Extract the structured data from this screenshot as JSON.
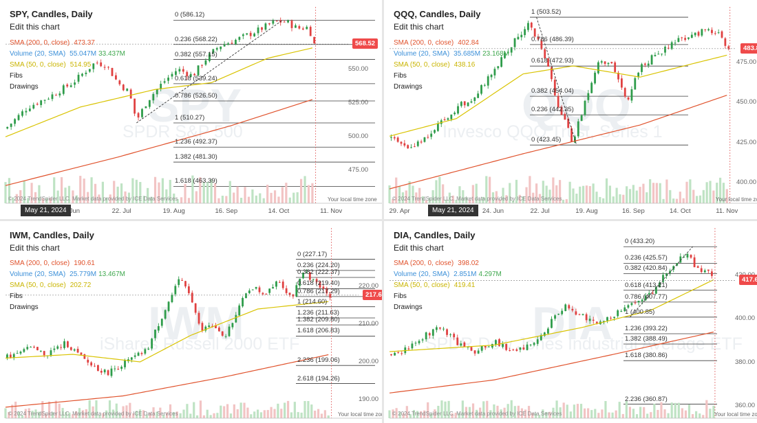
{
  "chart_data": [
    {
      "type": "candlestick",
      "title": "SPY, Candles, Daily",
      "edit_label": "Edit this chart",
      "watermark_symbol": "SPY",
      "watermark_name": "SPDR S&P 500",
      "indicators": [
        {
          "label": "SMA (200, 0, close)",
          "value": "473.37",
          "color": "#e0522c"
        },
        {
          "label": "Volume (20, SMA)",
          "value": "55.047M",
          "value2": "33.437M",
          "color": "#3b8fd8"
        },
        {
          "label": "SMA (50, 0, close)",
          "value": "514.95",
          "color": "#c9b400"
        },
        {
          "label": "Fibs",
          "value": "",
          "color": "#222"
        },
        {
          "label": "Drawings",
          "value": "",
          "color": "#222"
        }
      ],
      "y_ticks": [
        "550.00",
        "525.00",
        "500.00",
        "475.00"
      ],
      "y_values": [
        550,
        525,
        500,
        475
      ],
      "ylim": [
        458,
        596
      ],
      "x_ticks": [
        "24. Jun",
        "22. Jul",
        "19. Aug",
        "16. Sep",
        "14. Oct",
        "11. Nov"
      ],
      "x_tick_days": [
        34,
        62,
        90,
        118,
        146,
        174
      ],
      "x_start": "May 21, 2024",
      "last_price": "568.52",
      "last_value": 568.52,
      "fib_levels": [
        {
          "label": "0 (586.12)",
          "value": 586.12
        },
        {
          "label": "0.236 (568.22)",
          "value": 568.22
        },
        {
          "label": "0.382 (557.15)",
          "value": 557.15
        },
        {
          "label": "0.618 (539.24)",
          "value": 539.24
        },
        {
          "label": "0.786 (526.50)",
          "value": 526.5
        },
        {
          "label": "1 (510.27)",
          "value": 510.27
        },
        {
          "label": "1.236 (492.37)",
          "value": 492.37
        },
        {
          "label": "1.382 (481.30)",
          "value": 481.3
        },
        {
          "label": "1.618 (463.39)",
          "value": 463.39
        }
      ],
      "close_series": [
        {
          "day": 0,
          "value": 506
        },
        {
          "day": 12,
          "value": 522
        },
        {
          "day": 24,
          "value": 530
        },
        {
          "day": 36,
          "value": 540
        },
        {
          "day": 48,
          "value": 555
        },
        {
          "day": 54,
          "value": 553
        },
        {
          "day": 60,
          "value": 540
        },
        {
          "day": 66,
          "value": 533
        },
        {
          "day": 70,
          "value": 512
        },
        {
          "day": 76,
          "value": 527
        },
        {
          "day": 84,
          "value": 540
        },
        {
          "day": 92,
          "value": 550
        },
        {
          "day": 100,
          "value": 545
        },
        {
          "day": 106,
          "value": 556
        },
        {
          "day": 114,
          "value": 567
        },
        {
          "day": 124,
          "value": 572
        },
        {
          "day": 134,
          "value": 578
        },
        {
          "day": 144,
          "value": 585
        },
        {
          "day": 150,
          "value": 585
        },
        {
          "day": 156,
          "value": 580
        },
        {
          "day": 162,
          "value": 581
        },
        {
          "day": 165,
          "value": 568.5
        }
      ],
      "sma50_series": [
        {
          "day": 0,
          "value": 500
        },
        {
          "day": 40,
          "value": 522
        },
        {
          "day": 80,
          "value": 535
        },
        {
          "day": 110,
          "value": 540
        },
        {
          "day": 140,
          "value": 558
        },
        {
          "day": 165,
          "value": 566
        }
      ],
      "sma200_series": [
        {
          "day": 0,
          "value": 464
        },
        {
          "day": 60,
          "value": 485
        },
        {
          "day": 120,
          "value": 508
        },
        {
          "day": 165,
          "value": 528
        }
      ],
      "fib_drawing": [
        {
          "day": 70,
          "value": 510.27
        },
        {
          "day": 148,
          "value": 586.12
        }
      ],
      "credit": "© 2024 TrendSpider LLC. Market data provided by ICE Data Services",
      "timezone": "Your local time zone"
    },
    {
      "type": "candlestick",
      "title": "QQQ, Candles, Daily",
      "edit_label": "Edit this chart",
      "watermark_symbol": "QQQ",
      "watermark_name": "Invesco QQQ Trust, Series 1",
      "indicators": [
        {
          "label": "SMA (200, 0, close)",
          "value": "402.84",
          "color": "#e0522c"
        },
        {
          "label": "Volume (20, SMA)",
          "value": "35.685M",
          "value2": "23.168M",
          "color": "#3b8fd8"
        },
        {
          "label": "SMA (50, 0, close)",
          "value": "438.16",
          "color": "#c9b400"
        },
        {
          "label": "Fibs",
          "value": "",
          "color": "#222"
        },
        {
          "label": "Drawings",
          "value": "",
          "color": "#222"
        }
      ],
      "y_ticks": [
        "475.00",
        "450.00",
        "425.00",
        "400.00"
      ],
      "y_values": [
        475,
        450,
        425,
        400
      ],
      "ylim": [
        393,
        510
      ],
      "x_ticks": [
        "29. Apr",
        "24. Jun",
        "22. Jul",
        "19. Aug",
        "16. Sep",
        "14. Oct",
        "11. Nov"
      ],
      "x_tick_days": [
        6,
        62,
        90,
        118,
        146,
        174,
        202
      ],
      "x_start": "May 21, 2024",
      "last_price": "483.85",
      "last_value": 483.85,
      "fib_levels": [
        {
          "label": "1 (503.52)",
          "value": 503.52
        },
        {
          "label": "0.786 (486.39)",
          "value": 486.39
        },
        {
          "label": "0.618 (472.93)",
          "value": 472.93
        },
        {
          "label": "0.382 (454.04)",
          "value": 454.04
        },
        {
          "label": "0.236 (442.35)",
          "value": 442.35
        },
        {
          "label": "0 (423.45)",
          "value": 423.45
        }
      ],
      "close_series": [
        {
          "day": 0,
          "value": 428
        },
        {
          "day": 12,
          "value": 422
        },
        {
          "day": 24,
          "value": 430
        },
        {
          "day": 38,
          "value": 445
        },
        {
          "day": 52,
          "value": 455
        },
        {
          "day": 62,
          "value": 470
        },
        {
          "day": 76,
          "value": 490
        },
        {
          "day": 84,
          "value": 500
        },
        {
          "day": 92,
          "value": 482
        },
        {
          "day": 102,
          "value": 445
        },
        {
          "day": 110,
          "value": 425
        },
        {
          "day": 118,
          "value": 455
        },
        {
          "day": 126,
          "value": 477
        },
        {
          "day": 134,
          "value": 472
        },
        {
          "day": 142,
          "value": 450
        },
        {
          "day": 150,
          "value": 473
        },
        {
          "day": 160,
          "value": 480
        },
        {
          "day": 170,
          "value": 487
        },
        {
          "day": 180,
          "value": 492
        },
        {
          "day": 190,
          "value": 496
        },
        {
          "day": 198,
          "value": 492
        },
        {
          "day": 203,
          "value": 483.9
        }
      ],
      "sma50_series": [
        {
          "day": 0,
          "value": 429
        },
        {
          "day": 40,
          "value": 440
        },
        {
          "day": 80,
          "value": 468
        },
        {
          "day": 110,
          "value": 473
        },
        {
          "day": 150,
          "value": 466
        },
        {
          "day": 180,
          "value": 474
        },
        {
          "day": 203,
          "value": 480
        }
      ],
      "sma200_series": [
        {
          "day": 0,
          "value": 396
        },
        {
          "day": 80,
          "value": 418
        },
        {
          "day": 150,
          "value": 436
        },
        {
          "day": 203,
          "value": 455
        }
      ],
      "fib_drawing": [
        {
          "day": 88,
          "value": 503.52
        },
        {
          "day": 112,
          "value": 423.45
        }
      ],
      "credit": "© 2024 TrendSpider LLC. Market data provided by ICE Data Services",
      "timezone": "Your local time zone"
    },
    {
      "type": "candlestick",
      "title": "IWM, Candles, Daily",
      "edit_label": "Edit this chart",
      "watermark_symbol": "IWM",
      "watermark_name": "iShares Russell 2000 ETF",
      "indicators": [
        {
          "label": "SMA (200, 0, close)",
          "value": "190.61",
          "color": "#e0522c"
        },
        {
          "label": "Volume (20, SMA)",
          "value": "25.779M",
          "value2": "13.467M",
          "color": "#3b8fd8"
        },
        {
          "label": "SMA (50, 0, close)",
          "value": "202.72",
          "color": "#c9b400"
        },
        {
          "label": "Fibs",
          "value": "",
          "color": "#222"
        },
        {
          "label": "Drawings",
          "value": "",
          "color": "#222"
        }
      ],
      "y_ticks": [
        "220.00",
        "210.00",
        "200.00",
        "190.00"
      ],
      "y_values": [
        220,
        210,
        200,
        190
      ],
      "ylim": [
        186,
        230
      ],
      "x_ticks": [],
      "x_tick_days": [],
      "x_start": "",
      "last_price": "217.67",
      "last_value": 217.67,
      "fib_levels": [
        {
          "label": "0 (227.17)",
          "value": 227.17
        },
        {
          "label": "0.236 (224.20)",
          "value": 224.2
        },
        {
          "label": "0.382 (222.37)",
          "value": 222.37
        },
        {
          "label": "0.618 (219.40)",
          "value": 219.4
        },
        {
          "label": "0.786 (217.29)",
          "value": 217.29
        },
        {
          "label": "1 (214.60)",
          "value": 214.6
        },
        {
          "label": "1.236 (211.63)",
          "value": 211.63
        },
        {
          "label": "1.382 (209.80)",
          "value": 209.8
        },
        {
          "label": "1.618 (206.83)",
          "value": 206.83
        },
        {
          "label": "2.236 (199.06)",
          "value": 199.06
        },
        {
          "label": "2.618 (194.26)",
          "value": 194.26
        }
      ],
      "close_series": [
        {
          "day": 0,
          "value": 201
        },
        {
          "day": 12,
          "value": 204
        },
        {
          "day": 24,
          "value": 202
        },
        {
          "day": 36,
          "value": 205
        },
        {
          "day": 48,
          "value": 200
        },
        {
          "day": 60,
          "value": 197
        },
        {
          "day": 72,
          "value": 200
        },
        {
          "day": 84,
          "value": 203
        },
        {
          "day": 96,
          "value": 215
        },
        {
          "day": 104,
          "value": 222
        },
        {
          "day": 110,
          "value": 218
        },
        {
          "day": 116,
          "value": 208
        },
        {
          "day": 122,
          "value": 210
        },
        {
          "day": 130,
          "value": 206
        },
        {
          "day": 138,
          "value": 214
        },
        {
          "day": 146,
          "value": 220
        },
        {
          "day": 154,
          "value": 218
        },
        {
          "day": 162,
          "value": 222
        },
        {
          "day": 170,
          "value": 217
        },
        {
          "day": 178,
          "value": 224
        },
        {
          "day": 186,
          "value": 220
        },
        {
          "day": 193,
          "value": 217.7
        }
      ],
      "sma50_series": [
        {
          "day": 0,
          "value": 201
        },
        {
          "day": 40,
          "value": 202
        },
        {
          "day": 80,
          "value": 200
        },
        {
          "day": 110,
          "value": 207
        },
        {
          "day": 150,
          "value": 214
        },
        {
          "day": 193,
          "value": 216
        }
      ],
      "sma200_series": [
        {
          "day": 0,
          "value": 188
        },
        {
          "day": 70,
          "value": 191
        },
        {
          "day": 130,
          "value": 196
        },
        {
          "day": 193,
          "value": 202
        }
      ],
      "fib_drawing": [],
      "credit": "© 2024 TrendSpider LLC. Market data provided by ICE Data Services",
      "timezone": "Your local time zone"
    },
    {
      "type": "candlestick",
      "title": "DIA, Candles, Daily",
      "edit_label": "Edit this chart",
      "watermark_symbol": "DIA",
      "watermark_name": "SPDR Dow Jones Industrial Average ETF",
      "indicators": [
        {
          "label": "SMA (200, 0, close)",
          "value": "398.02",
          "color": "#e0522c"
        },
        {
          "label": "Volume (20, SMA)",
          "value": "2.851M",
          "value2": "4.297M",
          "color": "#3b8fd8"
        },
        {
          "label": "SMA (50, 0, close)",
          "value": "419.41",
          "color": "#c9b400"
        },
        {
          "label": "Fibs",
          "value": "",
          "color": "#222"
        },
        {
          "label": "Drawings",
          "value": "",
          "color": "#222"
        }
      ],
      "y_ticks": [
        "420.00",
        "400.00",
        "380.00",
        "360.00"
      ],
      "y_values": [
        420,
        400,
        380,
        360
      ],
      "ylim": [
        356,
        438
      ],
      "x_ticks": [],
      "x_tick_days": [],
      "x_start": "",
      "last_price": "417.69",
      "last_value": 417.69,
      "fib_levels": [
        {
          "label": "0 (433.20)",
          "value": 433.2
        },
        {
          "label": "0.236 (425.57)",
          "value": 425.57
        },
        {
          "label": "0.382 (420.84)",
          "value": 420.84
        },
        {
          "label": "0.618 (413.21)",
          "value": 413.21
        },
        {
          "label": "0.786 (407.77)",
          "value": 407.77
        },
        {
          "label": "1 (400.85)",
          "value": 400.85
        },
        {
          "label": "1.236 (393.22)",
          "value": 393.22
        },
        {
          "label": "1.382 (388.49)",
          "value": 388.49
        },
        {
          "label": "1.618 (380.86)",
          "value": 380.86
        },
        {
          "label": "2.236 (360.87)",
          "value": 360.87
        }
      ],
      "close_series": [
        {
          "day": 0,
          "value": 384
        },
        {
          "day": 10,
          "value": 386
        },
        {
          "day": 20,
          "value": 392
        },
        {
          "day": 30,
          "value": 396
        },
        {
          "day": 40,
          "value": 388
        },
        {
          "day": 50,
          "value": 385
        },
        {
          "day": 60,
          "value": 390
        },
        {
          "day": 70,
          "value": 385
        },
        {
          "day": 80,
          "value": 388
        },
        {
          "day": 90,
          "value": 396
        },
        {
          "day": 100,
          "value": 406
        },
        {
          "day": 110,
          "value": 402
        },
        {
          "day": 120,
          "value": 398
        },
        {
          "day": 130,
          "value": 402
        },
        {
          "day": 140,
          "value": 408
        },
        {
          "day": 150,
          "value": 412
        },
        {
          "day": 160,
          "value": 422
        },
        {
          "day": 170,
          "value": 430
        },
        {
          "day": 176,
          "value": 424
        },
        {
          "day": 182,
          "value": 422
        },
        {
          "day": 186,
          "value": 417.7
        }
      ],
      "sma50_series": [
        {
          "day": 0,
          "value": 385
        },
        {
          "day": 60,
          "value": 388
        },
        {
          "day": 110,
          "value": 396
        },
        {
          "day": 150,
          "value": 404
        },
        {
          "day": 186,
          "value": 418
        }
      ],
      "sma200_series": [
        {
          "day": 0,
          "value": 366
        },
        {
          "day": 60,
          "value": 372
        },
        {
          "day": 130,
          "value": 384
        },
        {
          "day": 186,
          "value": 394
        }
      ],
      "fib_drawing": [
        {
          "day": 138,
          "value": 400.85
        },
        {
          "day": 174,
          "value": 433.2
        }
      ],
      "credit": "© 2024 TrendSpider LLC. Market data provided by ICE Data Services",
      "timezone": "Your local time zone"
    }
  ]
}
